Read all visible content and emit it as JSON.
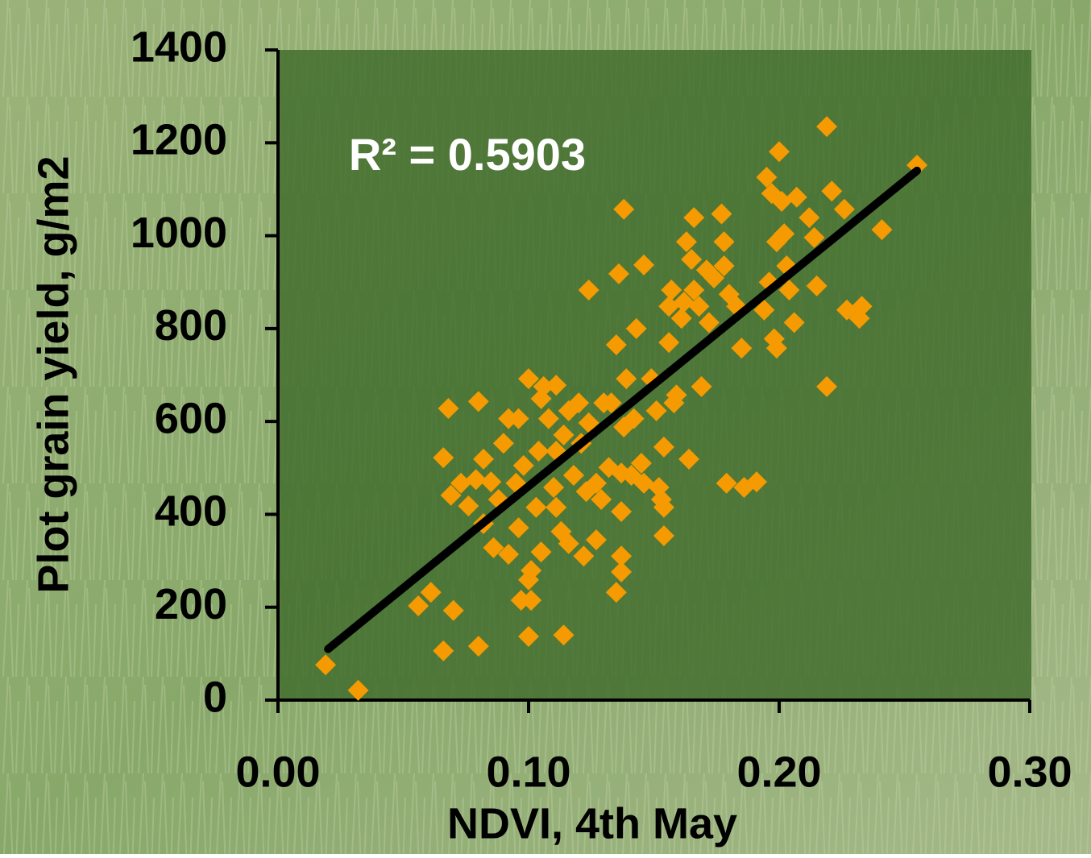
{
  "chart_data": {
    "type": "scatter",
    "x_label": "NDVI, 4th May",
    "y_label": "Plot grain yield, g/m2",
    "annotation": "R² = 0.5903",
    "xlim": [
      0,
      0.3
    ],
    "xticks": [
      {
        "value": 0,
        "label": "0.00"
      },
      {
        "value": 0.1,
        "label": "0.10"
      },
      {
        "value": 0.2,
        "label": "0.20"
      },
      {
        "value": 0.3,
        "label": "0.30"
      }
    ],
    "ylim": [
      0,
      1400
    ],
    "yticks": [
      0,
      200,
      400,
      600,
      800,
      1000,
      1200,
      1400
    ],
    "color": "#f59a00",
    "x": [
      0.019,
      0.032,
      0.056,
      0.061,
      0.066,
      0.07,
      0.08,
      0.068,
      0.066,
      0.069,
      0.073,
      0.076,
      0.079,
      0.082,
      0.08,
      0.082,
      0.085,
      0.086,
      0.088,
      0.09,
      0.092,
      0.092,
      0.095,
      0.096,
      0.096,
      0.098,
      0.1,
      0.1,
      0.101,
      0.101,
      0.1,
      0.097,
      0.103,
      0.104,
      0.105,
      0.106,
      0.108,
      0.105,
      0.11,
      0.111,
      0.111,
      0.114,
      0.113,
      0.114,
      0.116,
      0.116,
      0.118,
      0.121,
      0.122,
      0.123,
      0.124,
      0.124,
      0.127,
      0.127,
      0.129,
      0.13,
      0.132,
      0.133,
      0.135,
      0.135,
      0.136,
      0.137,
      0.137,
      0.137,
      0.138,
      0.139,
      0.141,
      0.138,
      0.142,
      0.143,
      0.145,
      0.146,
      0.146,
      0.149,
      0.151,
      0.152,
      0.153,
      0.154,
      0.154,
      0.154,
      0.156,
      0.156,
      0.158,
      0.159,
      0.157,
      0.161,
      0.162,
      0.163,
      0.164,
      0.166,
      0.165,
      0.166,
      0.168,
      0.169,
      0.171,
      0.172,
      0.174,
      0.177,
      0.178,
      0.178,
      0.179,
      0.18,
      0.183,
      0.185,
      0.186,
      0.191,
      0.194,
      0.195,
      0.196,
      0.197,
      0.198,
      0.199,
      0.199,
      0.2,
      0.201,
      0.202,
      0.203,
      0.204,
      0.206,
      0.207,
      0.212,
      0.214,
      0.215,
      0.219,
      0.219,
      0.221,
      0.226,
      0.227,
      0.232,
      0.233,
      0.241,
      0.255,
      0.12,
      0.111,
      0.137
    ],
    "values": [
      76,
      21,
      203,
      232,
      106,
      193,
      116,
      628,
      522,
      441,
      467,
      418,
      475,
      519,
      643,
      380,
      470,
      328,
      432,
      553,
      606,
      314,
      467,
      371,
      606,
      505,
      692,
      259,
      215,
      279,
      137,
      215,
      415,
      536,
      649,
      675,
      606,
      319,
      458,
      678,
      415,
      140,
      363,
      571,
      623,
      337,
      484,
      553,
      310,
      449,
      883,
      597,
      345,
      467,
      432,
      640,
      501,
      640,
      232,
      765,
      918,
      406,
      276,
      489,
      588,
      692,
      484,
      1057,
      606,
      800,
      510,
      937,
      467,
      692,
      623,
      458,
      432,
      415,
      354,
      545,
      848,
      770,
      640,
      657,
      883,
      822,
      857,
      987,
      519,
      883,
      949,
      1039,
      848,
      675,
      926,
      813,
      909,
      1047,
      935,
      987,
      467,
      874,
      848,
      758,
      458,
      470,
      840,
      1126,
      900,
      1091,
      778,
      987,
      758,
      1181,
      1074,
      1004,
      935,
      883,
      813,
      1083,
      1039,
      996,
      892,
      675,
      1235,
      1096,
      1057,
      840,
      822,
      848,
      1013,
      1152,
      640,
      536,
      310
    ],
    "trendline": {
      "color": "#000000",
      "x": [
        0.02,
        0.255
      ],
      "y": [
        110,
        1140
      ]
    }
  }
}
